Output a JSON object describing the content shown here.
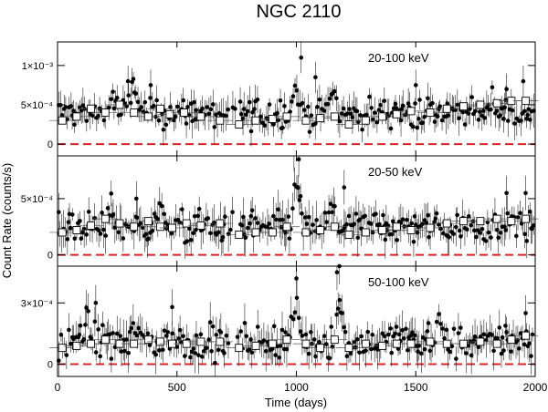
{
  "chart_data": {
    "type": "scatter",
    "title": "NGC 2110",
    "xlabel": "Time (days)",
    "ylabel": "Count Rate (counts/s)",
    "xlim": [
      0,
      2000
    ],
    "x_ticks": [
      0,
      500,
      1000,
      1500,
      2000
    ],
    "x_tick_labels": [
      "0",
      "500",
      "1000",
      "1500",
      "2000"
    ],
    "zero_line_color": "#e02020",
    "zero_line_style": "dashed",
    "panels": [
      {
        "label": "20-100 keV",
        "ylim": [
          -0.00015,
          0.0013
        ],
        "y_ticks": [
          0,
          0.0005,
          0.001
        ],
        "y_tick_labels": [
          "0",
          "5×10⁻⁴",
          "1×10⁻³"
        ],
        "mean_level": 0.0004,
        "flares": [
          [
            230,
            0.0007
          ],
          [
            320,
            0.001
          ],
          [
            1000,
            0.00095
          ],
          [
            1150,
            0.00085
          ],
          [
            1820,
            0.0007
          ]
        ],
        "noise": 0.00018,
        "outliers": [
          [
            295,
            0.0008
          ],
          [
            390,
            0.00075
          ],
          [
            1020,
            0.0011
          ],
          [
            1080,
            0.00085
          ],
          [
            1500,
            0.00075
          ],
          [
            1880,
            0.0007
          ],
          [
            1950,
            0.0008
          ]
        ],
        "binned_points": [
          [
            20,
            0.0003
          ],
          [
            80,
            0.00035
          ],
          [
            140,
            0.00045
          ],
          [
            200,
            0.0004
          ],
          [
            260,
            0.0005
          ],
          [
            320,
            0.0004
          ],
          [
            380,
            0.00035
          ],
          [
            430,
            0.00045
          ],
          [
            470,
            0.00038
          ],
          [
            530,
            0.0004
          ],
          [
            600,
            0.00035
          ],
          [
            680,
            0.0003
          ],
          [
            760,
            0.00025
          ],
          [
            830,
            0.0003
          ],
          [
            900,
            0.00032
          ],
          [
            960,
            0.00035
          ],
          [
            1040,
            0.0003
          ],
          [
            1100,
            0.00033
          ],
          [
            1160,
            0.00035
          ],
          [
            1220,
            0.00025
          ],
          [
            1290,
            0.0003
          ],
          [
            1360,
            0.00035
          ],
          [
            1420,
            0.00038
          ],
          [
            1480,
            0.00042
          ],
          [
            1560,
            0.0004
          ],
          [
            1630,
            0.00045
          ],
          [
            1700,
            0.00048
          ],
          [
            1770,
            0.0005
          ],
          [
            1840,
            0.00052
          ],
          [
            1900,
            0.00055
          ],
          [
            1960,
            0.00055
          ]
        ]
      },
      {
        "label": "20-50 keV",
        "ylim": [
          -0.0001,
          0.00088
        ],
        "y_ticks": [
          0,
          0.0005
        ],
        "y_tick_labels": [
          "0",
          "5×10⁻⁴"
        ],
        "mean_level": 0.00025,
        "flares": [
          [
            230,
            0.0005
          ],
          [
            430,
            0.0005
          ],
          [
            1000,
            0.00085
          ],
          [
            1150,
            0.0005
          ],
          [
            1900,
            0.0005
          ]
        ],
        "noise": 0.00014,
        "outliers": [
          [
            990,
            0.0009
          ],
          [
            1010,
            0.00085
          ],
          [
            330,
            0.0005
          ],
          [
            1200,
            0.0006
          ],
          [
            1880,
            0.00055
          ],
          [
            1960,
            0.00055
          ]
        ],
        "binned_points": [
          [
            20,
            0.0002
          ],
          [
            80,
            0.00022
          ],
          [
            140,
            0.00026
          ],
          [
            200,
            0.00032
          ],
          [
            260,
            0.00028
          ],
          [
            320,
            0.00025
          ],
          [
            380,
            0.0003
          ],
          [
            430,
            0.00025
          ],
          [
            480,
            0.00024
          ],
          [
            540,
            0.00028
          ],
          [
            600,
            0.00026
          ],
          [
            680,
            0.00028
          ],
          [
            760,
            0.00018
          ],
          [
            830,
            0.0002
          ],
          [
            900,
            0.0002
          ],
          [
            960,
            0.00025
          ],
          [
            1040,
            0.0002
          ],
          [
            1100,
            0.00022
          ],
          [
            1160,
            0.00025
          ],
          [
            1220,
            0.00018
          ],
          [
            1290,
            0.0002
          ],
          [
            1360,
            0.00022
          ],
          [
            1420,
            0.00025
          ],
          [
            1480,
            0.00022
          ],
          [
            1560,
            0.00024
          ],
          [
            1630,
            0.00028
          ],
          [
            1700,
            0.0003
          ],
          [
            1770,
            0.0003
          ],
          [
            1840,
            0.00032
          ],
          [
            1900,
            0.0003
          ],
          [
            1960,
            0.00032
          ]
        ]
      },
      {
        "label": "50-100 keV",
        "ylim": [
          -6e-05,
          0.00048
        ],
        "y_ticks": [
          0,
          0.0003
        ],
        "y_tick_labels": [
          "0",
          "3×10⁻⁴"
        ],
        "mean_level": 0.00011,
        "flares": [
          [
            120,
            0.00025
          ],
          [
            330,
            0.00025
          ],
          [
            1000,
            0.0004
          ],
          [
            1180,
            0.0004
          ],
          [
            1600,
            0.00025
          ]
        ],
        "noise": 8e-05,
        "outliers": [
          [
            1000,
            0.00042
          ],
          [
            1180,
            0.00048
          ],
          [
            1170,
            0.00045
          ],
          [
            160,
            0.0003
          ],
          [
            480,
            0.00028
          ],
          [
            1960,
            0.00025
          ]
        ],
        "binned_points": [
          [
            20,
            8e-05
          ],
          [
            80,
            9e-05
          ],
          [
            140,
            0.0001
          ],
          [
            200,
            0.00012
          ],
          [
            260,
            0.0001
          ],
          [
            320,
            0.0001
          ],
          [
            380,
            0.00012
          ],
          [
            430,
            0.00011
          ],
          [
            480,
            0.0001
          ],
          [
            540,
            0.0001
          ],
          [
            600,
            0.00011
          ],
          [
            680,
            0.00011
          ],
          [
            760,
            8e-05
          ],
          [
            830,
            9e-05
          ],
          [
            900,
            0.0001
          ],
          [
            960,
            0.00012
          ],
          [
            1040,
            0.0001
          ],
          [
            1100,
            8e-05
          ],
          [
            1160,
            0.00012
          ],
          [
            1220,
            8e-05
          ],
          [
            1290,
            0.0001
          ],
          [
            1360,
            9e-05
          ],
          [
            1420,
            0.0001
          ],
          [
            1480,
            0.0001
          ],
          [
            1560,
            0.00011
          ],
          [
            1630,
            0.0001
          ],
          [
            1700,
            0.0001
          ],
          [
            1770,
            0.00011
          ],
          [
            1840,
            0.0001
          ],
          [
            1900,
            0.00012
          ],
          [
            1960,
            0.00014
          ]
        ]
      }
    ]
  }
}
